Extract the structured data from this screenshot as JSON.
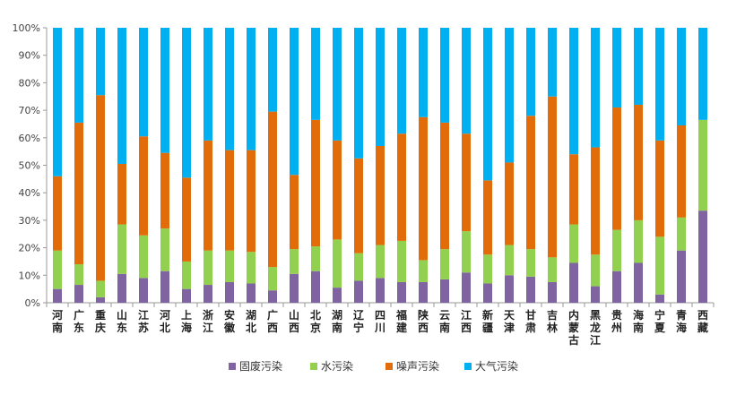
{
  "chart_data": {
    "type": "bar",
    "stacked": true,
    "percent": true,
    "categories": [
      "河南",
      "广东",
      "重庆",
      "山东",
      "江苏",
      "河北",
      "上海",
      "浙江",
      "安徽",
      "湖北",
      "广西",
      "山西",
      "北京",
      "湖南",
      "辽宁",
      "四川",
      "福建",
      "陕西",
      "云南",
      "江西",
      "新疆",
      "天津",
      "甘肃",
      "吉林",
      "内蒙古",
      "黑龙江",
      "贵州",
      "海南",
      "宁夏",
      "青海",
      "西藏"
    ],
    "series": [
      {
        "name": "固废污染",
        "color": "#8064a2",
        "values": [
          5,
          6.5,
          2,
          10.5,
          9,
          11.5,
          5,
          6.5,
          7.5,
          7,
          4.5,
          10.5,
          11.5,
          5.5,
          8,
          9,
          7.5,
          7.5,
          8.5,
          11,
          7,
          10,
          9.5,
          7.5,
          14.5,
          6,
          11.5,
          14.5,
          3,
          19,
          33.5
        ]
      },
      {
        "name": "水污染",
        "color": "#92d050",
        "values": [
          14,
          7.5,
          6,
          18,
          15.5,
          15.5,
          10,
          12.5,
          11.5,
          11.5,
          8.5,
          9,
          9,
          17.5,
          10,
          12,
          15,
          8,
          11,
          15,
          10.5,
          11,
          10,
          9,
          14,
          11.5,
          15,
          15.5,
          21,
          12,
          33
        ]
      },
      {
        "name": "噪声污染",
        "color": "#e36c0a",
        "values": [
          27,
          51.5,
          67.5,
          22,
          36,
          27.5,
          30.5,
          40,
          36.5,
          37,
          56.5,
          27,
          46,
          36,
          34.5,
          36,
          39,
          52,
          46,
          35.5,
          27,
          30,
          48.5,
          58.5,
          25.5,
          39,
          44.5,
          42,
          35,
          33.5,
          0
        ]
      },
      {
        "name": "大气污染",
        "color": "#00b0f0",
        "values": [
          54,
          34.5,
          24.5,
          49.5,
          39.5,
          45.5,
          54.5,
          41,
          44.5,
          44.5,
          30.5,
          53.5,
          33.5,
          41,
          47.5,
          43,
          38.5,
          32.5,
          34.5,
          38.5,
          55.5,
          49,
          32,
          25,
          46,
          43.5,
          29,
          28,
          41,
          35.5,
          33.5
        ]
      }
    ],
    "ylim": [
      0,
      100
    ],
    "yticks": [
      "0%",
      "10%",
      "20%",
      "30%",
      "40%",
      "50%",
      "60%",
      "70%",
      "80%",
      "90%",
      "100%"
    ],
    "grid": false,
    "legend": "bottom"
  }
}
